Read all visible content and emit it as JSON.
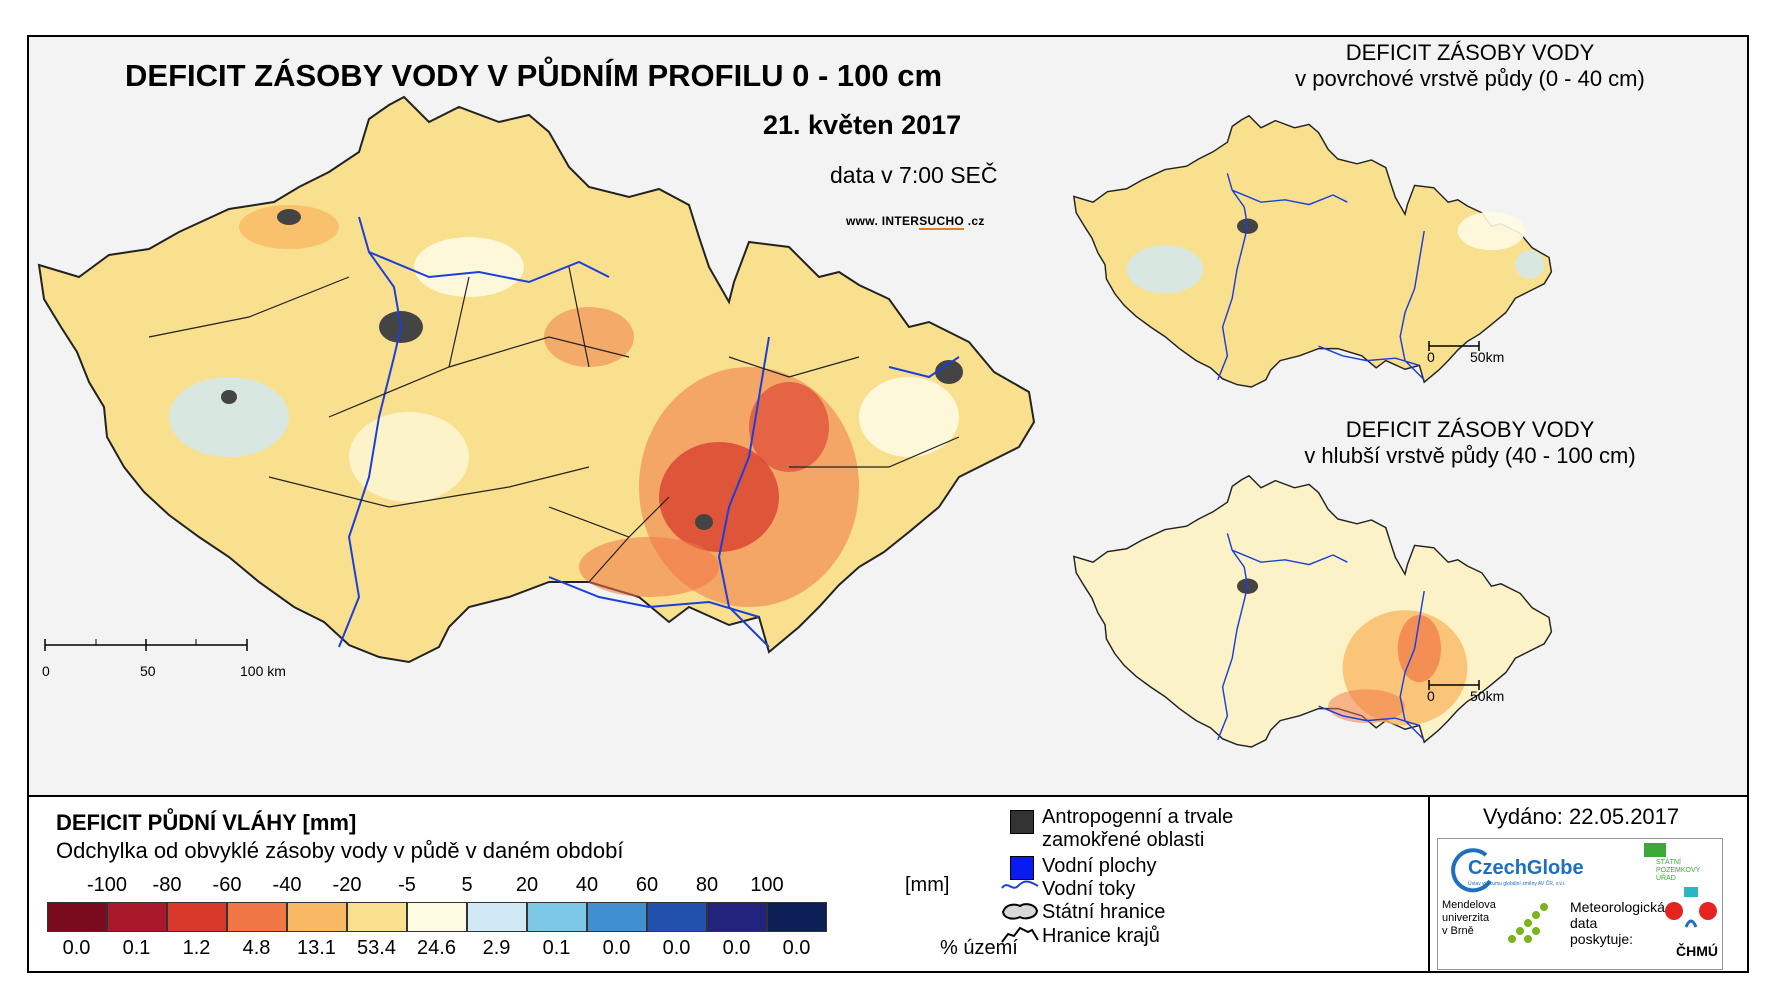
{
  "map": {
    "title": "DEFICIT ZÁSOBY VODY V PŮDNÍM PROFILU 0 - 100 cm",
    "date": "21. květen 2017",
    "time": "data v 7:00 SEČ",
    "website_prefix": "www. INTER",
    "website_highlight": "SUCHO",
    "website_suffix": " .cz",
    "scale": {
      "ticks": [
        "0",
        "50",
        "100 km"
      ]
    }
  },
  "inset_top": {
    "title": "DEFICIT ZÁSOBY VODY",
    "subtitle": "v povrchové vrstvě půdy (0 - 40 cm)",
    "scale": {
      "ticks": [
        "0",
        "50km"
      ]
    }
  },
  "inset_bottom": {
    "title": "DEFICIT ZÁSOBY VODY",
    "subtitle": "v hlubší vrstvě půdy (40 - 100 cm)",
    "scale": {
      "ticks": [
        "0",
        "50km"
      ]
    }
  },
  "legend": {
    "title": "DEFICIT PŮDNÍ VLÁHY [mm]",
    "subtitle": "Odchylka od obvyklé zásoby vody v půdě v daném období",
    "thresholds": [
      "-100",
      "-80",
      "-60",
      "-40",
      "-20",
      "-5",
      "5",
      "20",
      "40",
      "60",
      "80",
      "100"
    ],
    "unit": "[mm]",
    "classes": [
      {
        "color": "#7a0a1e",
        "percent": "0.0"
      },
      {
        "color": "#a8172a",
        "percent": "0.1"
      },
      {
        "color": "#d8392b",
        "percent": "1.2"
      },
      {
        "color": "#f07646",
        "percent": "4.8"
      },
      {
        "color": "#f9b964",
        "percent": "13.1"
      },
      {
        "color": "#f8e08e",
        "percent": "53.4"
      },
      {
        "color": "#fefbe3",
        "percent": "24.6"
      },
      {
        "color": "#cfeaf5",
        "percent": "2.9"
      },
      {
        "color": "#7cc8e6",
        "percent": "0.1"
      },
      {
        "color": "#3f8fd1",
        "percent": "0.0"
      },
      {
        "color": "#2150ad",
        "percent": "0.0"
      },
      {
        "color": "#23237e",
        "percent": "0.0"
      },
      {
        "color": "#0c1f56",
        "percent": "0.0"
      }
    ],
    "percent_label": "% území"
  },
  "symbols": {
    "anthropogenic_line1": "Antropogenní a trvale",
    "anthropogenic_line2": "zamokřené oblasti",
    "water_areas": "Vodní plochy",
    "rivers": "Vodní toky",
    "state_border": "Státní hranice",
    "region_border": "Hranice krajů"
  },
  "issued": "Vydáno: 22.05.2017",
  "logos": {
    "czechglobe": "CzechGlobe",
    "czechglobe_sub": "Ústav výzkumu globální změny AV ČR, v.v.i.",
    "spu_line1": "STÁTNÍ",
    "spu_line2": "POZEMKOVÝ",
    "spu_line3": "ÚŘAD",
    "mendel_line1": "Mendelova",
    "mendel_line2": "univerzita",
    "mendel_line3": "v Brně",
    "meteo_line1": "Meteorologická",
    "meteo_line2": "data",
    "meteo_line3": "poskytuje:",
    "chmu": "ČHMÚ"
  }
}
